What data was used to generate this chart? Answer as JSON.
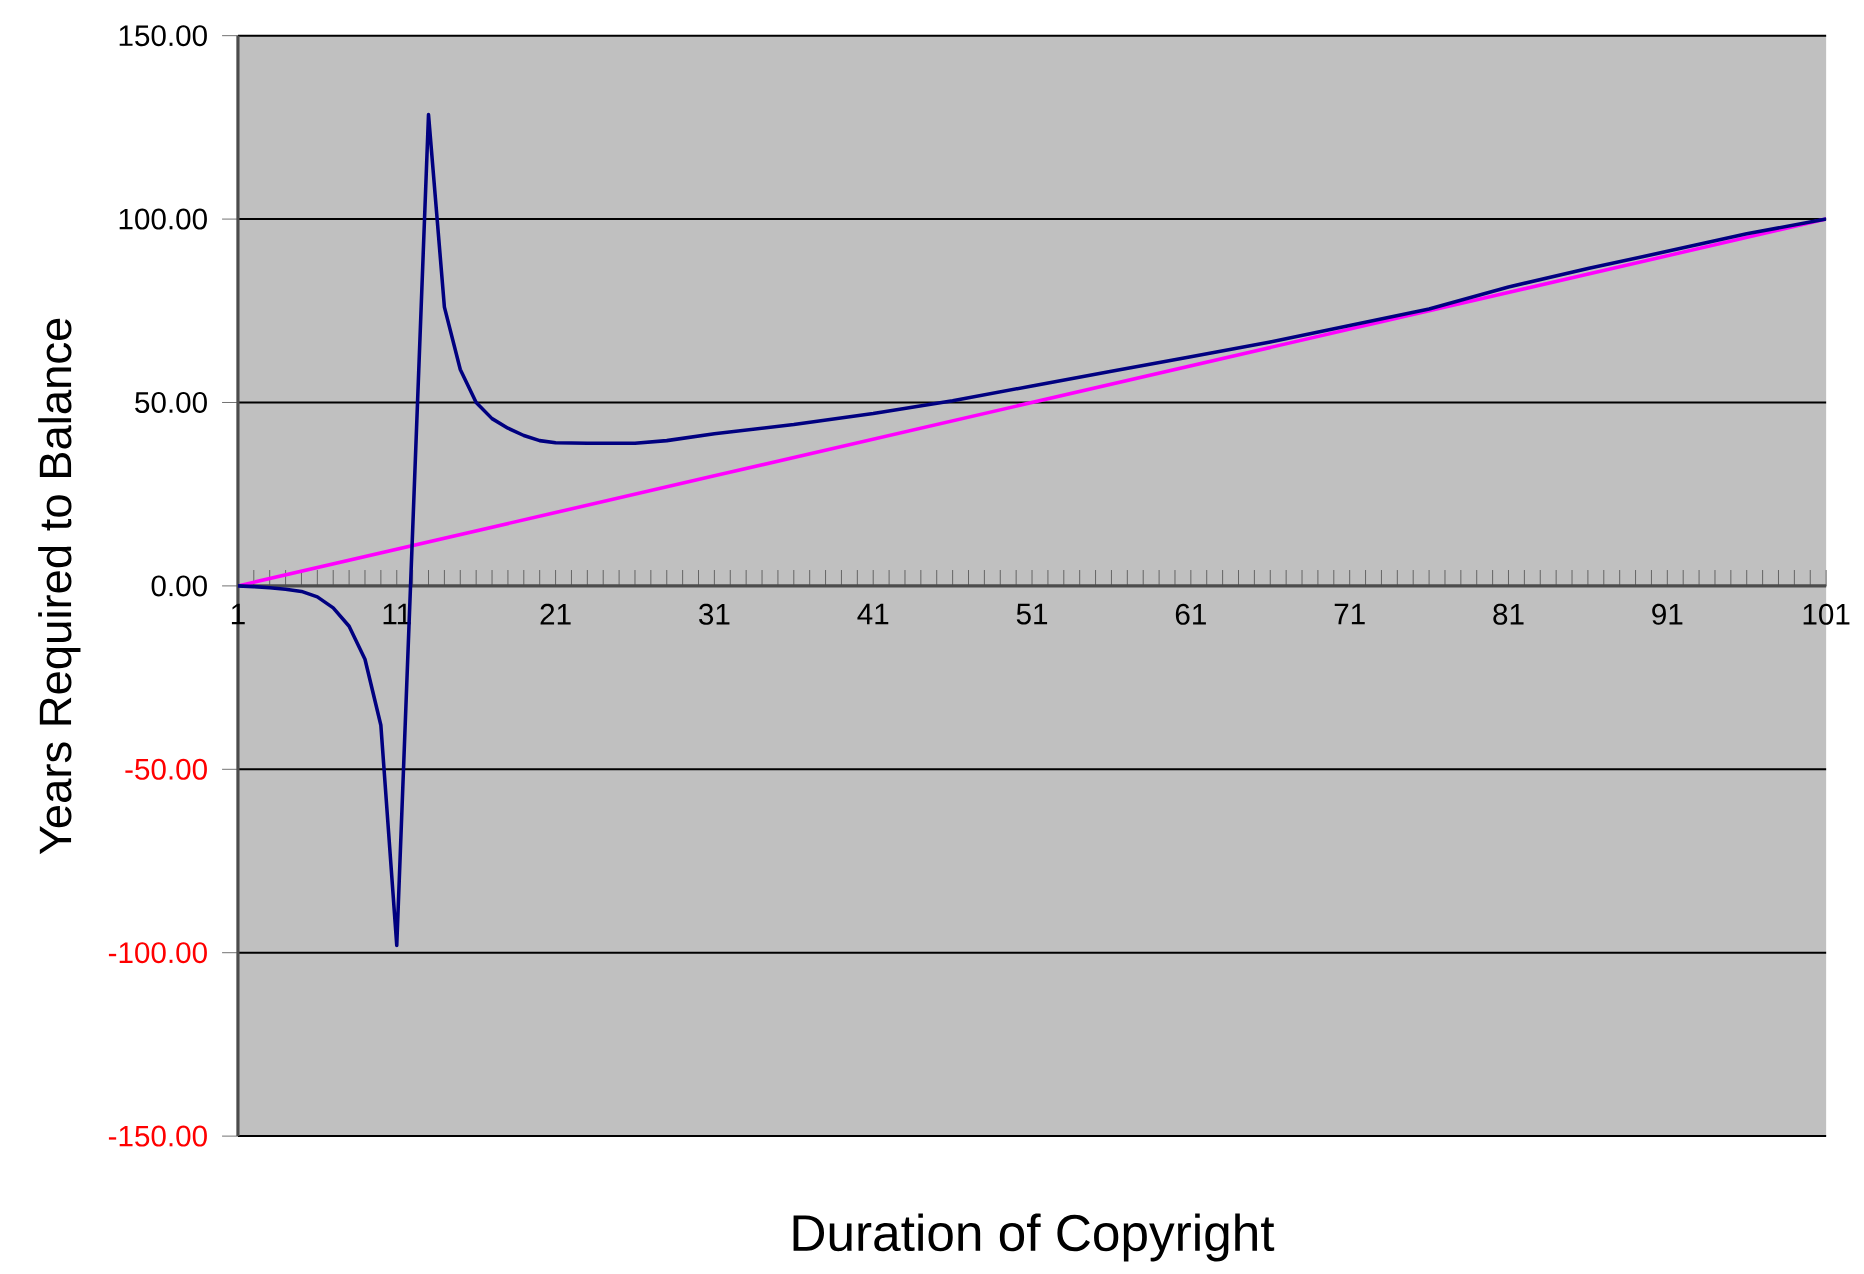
{
  "chart_data": {
    "type": "line",
    "xlabel": "Duration of Copyright",
    "ylabel": "Years Required to Balance",
    "xlim": [
      1,
      101
    ],
    "xticks": [
      1,
      11,
      21,
      31,
      41,
      51,
      61,
      71,
      81,
      91,
      101
    ],
    "ylim": [
      -150,
      150
    ],
    "yticks": [
      {
        "value": -150,
        "label": "-150.00"
      },
      {
        "value": -100,
        "label": "-100.00"
      },
      {
        "value": -50,
        "label": "-50.00"
      },
      {
        "value": 0,
        "label": "0.00"
      },
      {
        "value": 50,
        "label": "50.00"
      },
      {
        "value": 100,
        "label": "100.00"
      },
      {
        "value": 150,
        "label": "150.00"
      }
    ],
    "grid": "y",
    "series": [
      {
        "color": "#ff00ff",
        "x": [
          1,
          11,
          21,
          31,
          41,
          51,
          61,
          71,
          81,
          91,
          101
        ],
        "values": [
          0,
          10,
          20,
          30,
          40,
          50,
          60,
          70,
          80,
          90,
          100
        ]
      },
      {
        "color": "#000080",
        "x": [
          1,
          2,
          3,
          4,
          5,
          6,
          7,
          8,
          9,
          10,
          11,
          12,
          13,
          14,
          15,
          16,
          17,
          18,
          19,
          20,
          21,
          23,
          26,
          28,
          31,
          36,
          41,
          46,
          51,
          56,
          61,
          66,
          71,
          76,
          81,
          86,
          91,
          96,
          101
        ],
        "values": [
          0,
          -0.2,
          -0.5,
          -0.9,
          -1.5,
          -3,
          -6,
          -11,
          -20,
          -38,
          -98,
          15,
          128.5,
          76,
          59,
          50,
          45.6,
          43,
          41,
          39.6,
          39,
          38.9,
          38.9,
          39.6,
          41.5,
          44,
          47,
          50.5,
          54.5,
          58.5,
          62.5,
          66.5,
          71,
          75.5,
          81.5,
          86.5,
          91.2,
          96,
          100
        ]
      }
    ]
  }
}
